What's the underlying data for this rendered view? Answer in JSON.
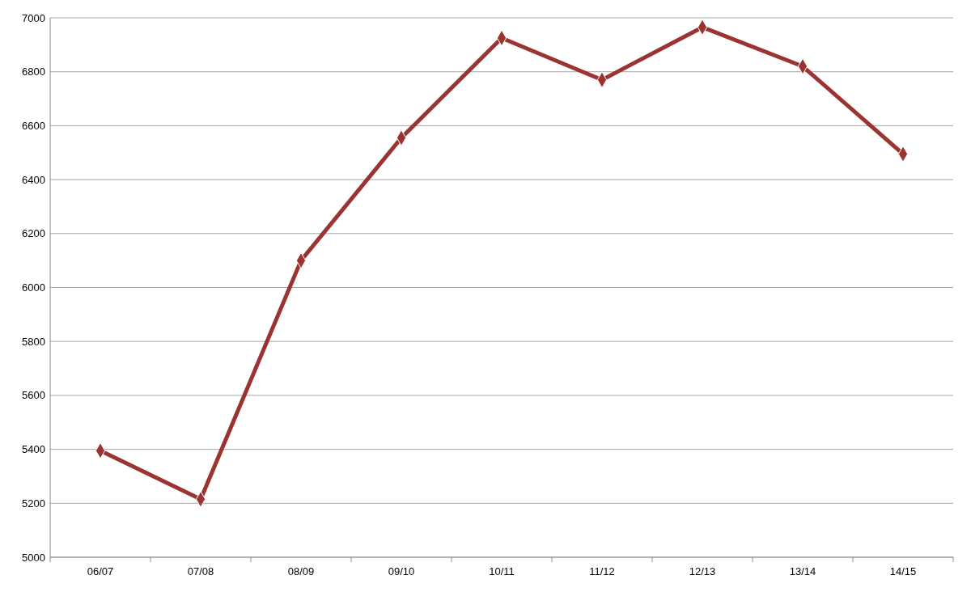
{
  "chart_data": {
    "type": "line",
    "categories": [
      "06/07",
      "07/08",
      "08/09",
      "09/10",
      "10/11",
      "11/12",
      "12/13",
      "13/14",
      "14/15"
    ],
    "series": [
      {
        "color": "#9b3431",
        "values": [
          5395,
          5215,
          6100,
          6555,
          6925,
          6770,
          6965,
          6820,
          6495
        ]
      }
    ],
    "ylim": [
      5000,
      7000
    ],
    "yticks": [
      5000,
      5200,
      5400,
      5600,
      5800,
      6000,
      6200,
      6400,
      6600,
      6800,
      7000
    ],
    "grid": "y",
    "marker": "diamond"
  }
}
